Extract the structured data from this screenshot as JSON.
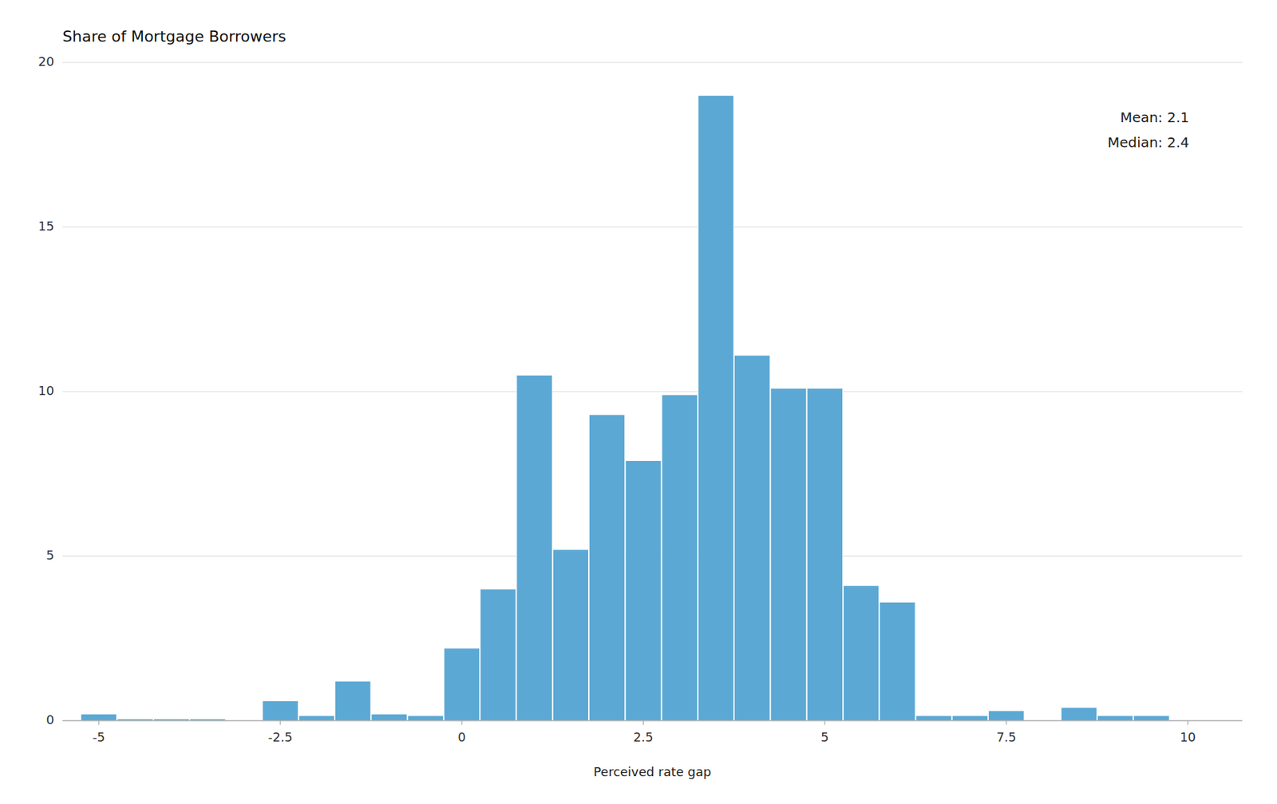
{
  "chart_data": {
    "type": "bar",
    "title": "Share of Mortgage Borrowers",
    "xlabel": "Perceived rate gap",
    "x": [
      -5.0,
      -4.5,
      -4.0,
      -3.5,
      -3.0,
      -2.5,
      -2.0,
      -1.5,
      -1.0,
      -0.5,
      0.0,
      0.5,
      1.0,
      1.5,
      2.0,
      2.5,
      3.0,
      3.5,
      4.0,
      4.5,
      5.0,
      5.5,
      6.0,
      6.5,
      7.0,
      7.5,
      8.0,
      8.5,
      9.0,
      9.5
    ],
    "values": [
      0.2,
      0.05,
      0.05,
      0.05,
      0.0,
      0.6,
      0.15,
      1.2,
      0.2,
      0.15,
      2.2,
      4.0,
      10.5,
      5.2,
      9.3,
      7.9,
      9.9,
      19.0,
      11.1,
      10.1,
      10.1,
      4.1,
      3.6,
      0.15,
      0.15,
      0.3,
      0.0,
      0.4,
      0.15,
      0.15
    ],
    "color": "#5BA8D4",
    "xlim": [
      -5.5,
      10.75
    ],
    "ylim": [
      0,
      20
    ],
    "xticks": [
      -5,
      -2.5,
      0,
      2.5,
      5,
      7.5,
      10
    ],
    "yticks": [
      0,
      5,
      10,
      15,
      20
    ],
    "grid": true,
    "annotations": [
      "Mean: 2.1",
      "Median: 2.4"
    ]
  }
}
